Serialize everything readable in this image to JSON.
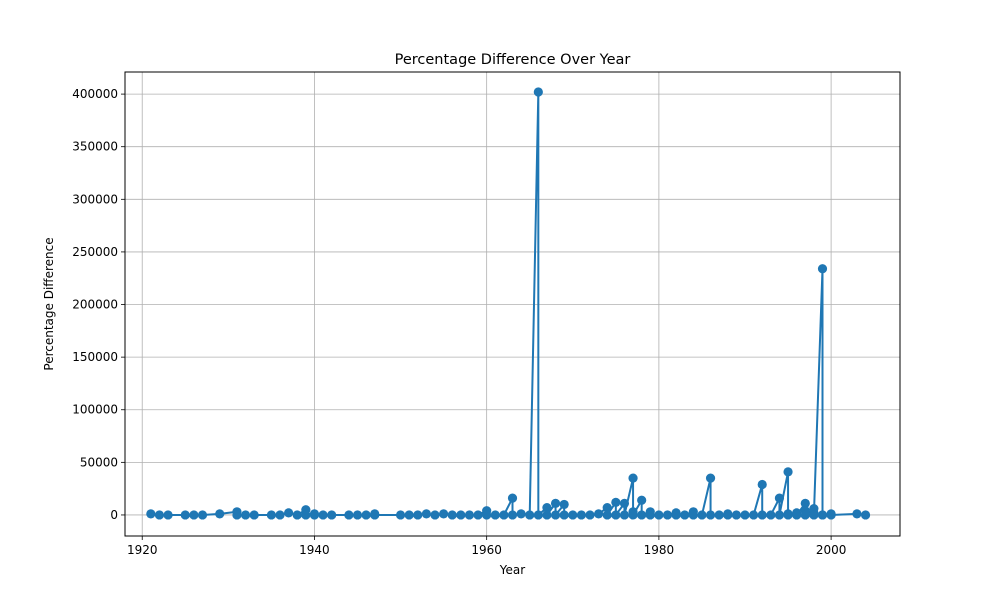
{
  "chart_data": {
    "type": "line",
    "title": "Percentage Difference Over Year",
    "xlabel": "Year",
    "ylabel": "Percentage Difference",
    "xlim": [
      1918,
      2008
    ],
    "ylim": [
      -20000,
      421000
    ],
    "xticks": [
      1920,
      1940,
      1960,
      1980,
      2000
    ],
    "yticks": [
      0,
      50000,
      100000,
      150000,
      200000,
      250000,
      300000,
      350000,
      400000
    ],
    "grid": true,
    "marker": "circle",
    "color": "#1f77b4",
    "series": [
      {
        "x": [
          1921,
          1922,
          1923,
          1925,
          1926,
          1927,
          1929,
          1931,
          1931,
          1932,
          1933,
          1935,
          1936,
          1937,
          1938,
          1939,
          1939,
          1940,
          1940,
          1941,
          1942,
          1944,
          1945,
          1946,
          1947,
          1947,
          1950,
          1951,
          1952,
          1953,
          1954,
          1955,
          1956,
          1957,
          1958,
          1959,
          1960,
          1960,
          1961,
          1962,
          1963,
          1963,
          1964,
          1965,
          1966,
          1966,
          1967,
          1967,
          1968,
          1968,
          1969,
          1969,
          1970,
          1971,
          1972,
          1973,
          1974,
          1974,
          1975,
          1975,
          1976,
          1976,
          1977,
          1977,
          1977,
          1978,
          1978,
          1979,
          1979,
          1980,
          1981,
          1982,
          1982,
          1983,
          1984,
          1984,
          1985,
          1986,
          1986,
          1987,
          1988,
          1988,
          1989,
          1990,
          1991,
          1992,
          1992,
          1993,
          1994,
          1994,
          1995,
          1995,
          1995,
          1996,
          1996,
          1997,
          1997,
          1997,
          1998,
          1998,
          1998,
          1999,
          1999,
          1999,
          2000,
          2000,
          2003,
          2004
        ],
        "y": [
          1000,
          0,
          0,
          0,
          0,
          0,
          1000,
          3000,
          0,
          0,
          0,
          0,
          0,
          2000,
          0,
          5000,
          0,
          1000,
          0,
          0,
          0,
          0,
          0,
          0,
          1000,
          0,
          0,
          0,
          0,
          1000,
          0,
          1000,
          0,
          0,
          0,
          0,
          4000,
          0,
          0,
          0,
          16000,
          0,
          1000,
          0,
          402000,
          0,
          7000,
          0,
          11000,
          0,
          10000,
          0,
          0,
          0,
          0,
          1000,
          7000,
          0,
          12000,
          0,
          11000,
          0,
          35000,
          3000,
          0,
          14000,
          0,
          3000,
          0,
          0,
          0,
          2000,
          0,
          0,
          3000,
          0,
          0,
          35000,
          0,
          0,
          1000,
          0,
          0,
          0,
          0,
          29000,
          0,
          0,
          16000,
          0,
          41000,
          1000,
          0,
          2000,
          0,
          11000,
          4000,
          0,
          6000,
          2000,
          0,
          234000,
          0,
          0,
          1000,
          0,
          1000,
          0
        ]
      }
    ]
  }
}
